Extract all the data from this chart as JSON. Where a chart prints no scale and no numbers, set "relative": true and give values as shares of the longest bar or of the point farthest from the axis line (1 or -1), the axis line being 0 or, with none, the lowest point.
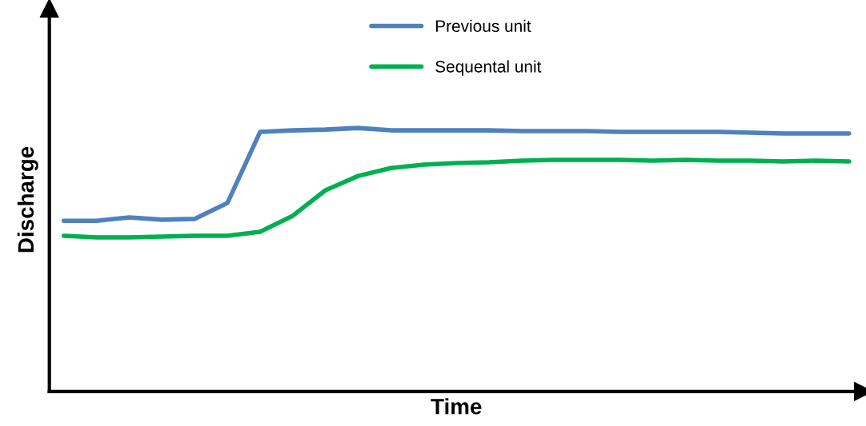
{
  "chart_data": {
    "type": "line",
    "relative": true,
    "xlabel": "Time",
    "ylabel": "Discharge",
    "legend": "top",
    "categories": [
      null,
      null,
      null,
      null,
      null,
      null,
      null,
      null,
      null,
      null,
      null,
      null,
      null,
      null,
      null,
      null,
      null,
      null,
      null,
      null,
      null,
      null,
      null,
      null,
      null
    ],
    "series": [
      {
        "name": "Previous unit",
        "color": "#4f81bd",
        "values": [
          0.648,
          0.648,
          0.661,
          0.652,
          0.655,
          0.715,
          0.985,
          0.991,
          0.994,
          1.0,
          0.991,
          0.991,
          0.991,
          0.991,
          0.988,
          0.988,
          0.988,
          0.985,
          0.985,
          0.985,
          0.985,
          0.982,
          0.979,
          0.979,
          0.979
        ]
      },
      {
        "name": "Sequental unit",
        "color": "#00b050",
        "values": [
          0.591,
          0.585,
          0.585,
          0.588,
          0.591,
          0.591,
          0.606,
          0.667,
          0.764,
          0.818,
          0.848,
          0.861,
          0.867,
          0.87,
          0.876,
          0.879,
          0.879,
          0.879,
          0.876,
          0.879,
          0.876,
          0.876,
          0.873,
          0.876,
          0.873
        ]
      }
    ]
  }
}
